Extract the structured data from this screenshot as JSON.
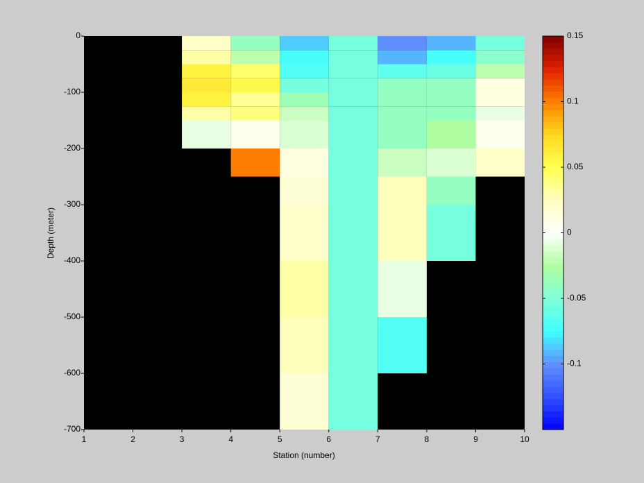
{
  "chart_data": {
    "type": "heatmap",
    "xlabel": "Station (number)",
    "ylabel": "Depth (meter)",
    "x_edges": [
      1,
      2,
      3,
      4,
      5,
      6,
      7,
      8,
      9,
      10
    ],
    "y_edges": [
      0,
      -25,
      -50,
      -75,
      -100,
      -125,
      -150,
      -200,
      -250,
      -300,
      -350,
      -400,
      -450,
      -500,
      -550,
      -600,
      -650,
      -700
    ],
    "z": [
      [
        null,
        null,
        0.02,
        -0.04,
        -0.085,
        -0.055,
        -0.1,
        -0.09,
        -0.055
      ],
      [
        null,
        null,
        0.03,
        -0.02,
        -0.075,
        -0.055,
        -0.09,
        -0.075,
        -0.045
      ],
      [
        null,
        null,
        0.06,
        0.045,
        -0.07,
        -0.055,
        -0.065,
        -0.06,
        -0.02
      ],
      [
        null,
        null,
        0.065,
        0.055,
        -0.055,
        -0.055,
        -0.04,
        -0.04,
        0.01
      ],
      [
        null,
        null,
        0.06,
        0.035,
        -0.035,
        -0.055,
        -0.04,
        -0.04,
        0.01
      ],
      [
        null,
        null,
        0.03,
        0.04,
        -0.015,
        -0.055,
        -0.04,
        -0.04,
        -0.005
      ],
      [
        null,
        null,
        -0.005,
        0.005,
        -0.01,
        -0.055,
        -0.04,
        -0.025,
        0.005
      ],
      [
        null,
        null,
        null,
        0.1,
        0.01,
        -0.055,
        -0.015,
        -0.01,
        0.02
      ],
      [
        null,
        null,
        null,
        null,
        0.015,
        -0.055,
        0.025,
        -0.04,
        null
      ],
      [
        null,
        null,
        null,
        null,
        0.02,
        -0.055,
        0.028,
        -0.055,
        null
      ],
      [
        null,
        null,
        null,
        null,
        0.02,
        -0.055,
        0.028,
        -0.055,
        null
      ],
      [
        null,
        null,
        null,
        null,
        0.03,
        -0.055,
        -0.005,
        null,
        null
      ],
      [
        null,
        null,
        null,
        null,
        0.03,
        -0.055,
        -0.005,
        null,
        null
      ],
      [
        null,
        null,
        null,
        null,
        0.028,
        -0.055,
        -0.07,
        null,
        null
      ],
      [
        null,
        null,
        null,
        null,
        0.028,
        -0.055,
        -0.07,
        null,
        null
      ],
      [
        null,
        null,
        null,
        null,
        0.018,
        -0.055,
        null,
        null,
        null
      ],
      [
        null,
        null,
        null,
        null,
        0.018,
        -0.055,
        null,
        null,
        null
      ]
    ],
    "xlim": [
      1,
      10
    ],
    "xticks": [
      1,
      2,
      3,
      4,
      5,
      6,
      7,
      8,
      9,
      10
    ],
    "ylim": [
      -700,
      0
    ],
    "yticks": [
      0,
      -100,
      -200,
      -300,
      -400,
      -500,
      -600,
      -700
    ],
    "clim": [
      -0.15,
      0.15
    ],
    "cticks": [
      -0.1,
      -0.05,
      0,
      0.05,
      0.1,
      0.15
    ],
    "colormap": [
      "#0000ff",
      "#3050ff",
      "#6090ff",
      "#40ffff",
      "#80ffd8",
      "#b0ffa0",
      "#ffffff",
      "#ffffc0",
      "#ffff50",
      "#ffd820",
      "#ff8000",
      "#e02000",
      "#800000"
    ],
    "colormap_levels": 64,
    "missing_color": "#000000"
  }
}
